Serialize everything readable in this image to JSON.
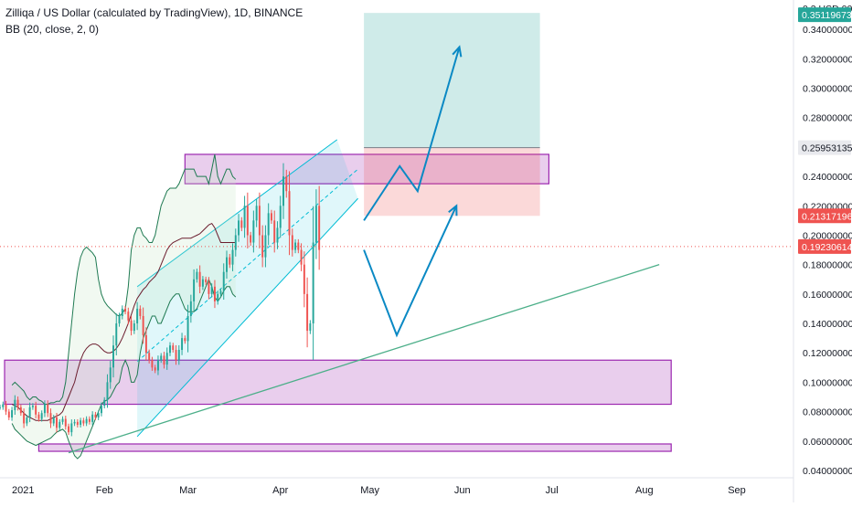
{
  "header": {
    "symbol_line": "Zilliqa / US Dollar (calculated by TradingView), 1D, BINANCE",
    "indicator_line": "BB (20, close, 2, 0)"
  },
  "colors": {
    "candle_up": "#26a69a",
    "candle_down": "#ef5350",
    "bb_band": "#1f7a52",
    "bb_basis": "#6b1d2e",
    "bb_fill": "#c8e6c9",
    "channel": "#00bcd4",
    "zone_fill": "#e1bee7",
    "zone_border": "#9c27b0",
    "trendline": "#4caf89",
    "arrow": "#0a89c4",
    "target_fill": "#26a69a",
    "stop_fill": "#ef5350",
    "current_price_line": "#ef5350"
  },
  "chart_data": {
    "type": "candlestick",
    "instrument": "Zilliqa / US Dollar",
    "interval": "1D",
    "exchange": "BINANCE",
    "indicator": "BB (20, close, 2, 0)",
    "y_axis": {
      "unit": "USD",
      "ylim": [
        0.035,
        0.36
      ],
      "tick_values": [
        0.04,
        0.06,
        0.08,
        0.1,
        0.12,
        0.14,
        0.16,
        0.18,
        0.2,
        0.22,
        0.24,
        0.28,
        0.3,
        0.32,
        0.34
      ],
      "tick_labels": [
        "0.04000000",
        "0.06000000",
        "0.08000000",
        "0.10000000",
        "0.12000000",
        "0.14000000",
        "0.16000000",
        "0.18000000",
        "0.20000000",
        "0.22000000",
        "0.24000000",
        "0.28000000",
        "0.30000000",
        "0.32000000",
        "0.34000000"
      ],
      "top_label": "0.3 USD 000",
      "price_tags": [
        {
          "value": 0.35,
          "label": "0.35119673",
          "style": "teal"
        },
        {
          "value": 0.25953135,
          "label": "0.25953135",
          "style": "gray"
        },
        {
          "value": 0.21317196,
          "label": "0.21317196",
          "style": "red"
        },
        {
          "value": 0.19230614,
          "label": "0.19230614",
          "style": "red"
        }
      ]
    },
    "x_axis": {
      "range": [
        "2020-12-28",
        "2021-09-20"
      ],
      "tick_labels": [
        {
          "date": "2021-01-01",
          "label": "2021"
        },
        {
          "date": "2021-02-01",
          "label": "Feb"
        },
        {
          "date": "2021-03-01",
          "label": "Mar"
        },
        {
          "date": "2021-04-01",
          "label": "Apr"
        },
        {
          "date": "2021-05-01",
          "label": "May"
        },
        {
          "date": "2021-06-01",
          "label": "Jun"
        },
        {
          "date": "2021-07-01",
          "label": "Jul"
        },
        {
          "date": "2021-08-01",
          "label": "Aug"
        },
        {
          "date": "2021-09-01",
          "label": "Sep"
        }
      ]
    },
    "price_path": {
      "start_date": "2020-12-28",
      "closes": [
        0.083,
        0.085,
        0.08,
        0.076,
        0.081,
        0.088,
        0.083,
        0.079,
        0.072,
        0.076,
        0.083,
        0.084,
        0.078,
        0.075,
        0.079,
        0.085,
        0.079,
        0.072,
        0.076,
        0.069,
        0.073,
        0.075,
        0.07,
        0.066,
        0.072,
        0.073,
        0.071,
        0.074,
        0.072,
        0.075,
        0.073,
        0.078,
        0.076,
        0.079,
        0.084,
        0.088,
        0.1,
        0.11,
        0.125,
        0.14,
        0.145,
        0.15,
        0.148,
        0.142,
        0.135,
        0.14,
        0.15,
        0.145,
        0.132,
        0.12,
        0.115,
        0.11,
        0.108,
        0.115,
        0.118,
        0.112,
        0.12,
        0.125,
        0.122,
        0.115,
        0.122,
        0.13,
        0.128,
        0.145,
        0.155,
        0.17,
        0.175,
        0.165,
        0.17,
        0.168,
        0.16,
        0.165,
        0.155,
        0.16,
        0.162,
        0.175,
        0.185,
        0.18,
        0.19,
        0.2,
        0.21,
        0.205,
        0.22,
        0.2,
        0.195,
        0.21,
        0.22,
        0.2,
        0.185,
        0.2,
        0.215,
        0.21,
        0.195,
        0.205,
        0.22,
        0.24,
        0.23,
        0.2,
        0.19,
        0.195,
        0.19,
        0.18,
        0.16,
        0.135,
        0.14,
        0.195,
        0.22,
        0.19
      ],
      "ohlc_note": "approximate daily closes read from the candles; highs/lows shown as wicks"
    },
    "bollinger_bands": {
      "start_date": "2021-01-01",
      "upper": [
        0.098,
        0.1,
        0.098,
        0.096,
        0.094,
        0.09,
        0.088,
        0.09,
        0.09,
        0.088,
        0.087,
        0.085,
        0.085,
        0.086,
        0.086,
        0.087,
        0.087,
        0.09,
        0.1,
        0.12,
        0.14,
        0.16,
        0.175,
        0.185,
        0.19,
        0.192,
        0.19,
        0.188,
        0.185,
        0.17,
        0.16,
        0.155,
        0.152,
        0.15,
        0.148,
        0.146,
        0.145,
        0.147,
        0.15,
        0.165,
        0.19,
        0.2,
        0.205,
        0.205,
        0.2,
        0.198,
        0.195,
        0.195,
        0.2,
        0.21,
        0.22,
        0.225,
        0.23,
        0.232,
        0.232,
        0.232,
        0.235,
        0.24,
        0.245,
        0.245,
        0.245,
        0.245,
        0.24,
        0.24,
        0.24,
        0.24,
        0.235,
        0.245,
        0.255,
        0.24,
        0.235,
        0.24,
        0.245,
        0.245,
        0.24,
        0.238
      ],
      "basis": [
        0.085,
        0.084,
        0.083,
        0.081,
        0.079,
        0.077,
        0.076,
        0.075,
        0.074,
        0.074,
        0.074,
        0.074,
        0.074,
        0.075,
        0.076,
        0.077,
        0.078,
        0.08,
        0.085,
        0.09,
        0.095,
        0.1,
        0.108,
        0.115,
        0.12,
        0.123,
        0.125,
        0.126,
        0.126,
        0.125,
        0.123,
        0.121,
        0.12,
        0.12,
        0.121,
        0.123,
        0.126,
        0.13,
        0.135,
        0.14,
        0.146,
        0.152,
        0.157,
        0.16,
        0.163,
        0.165,
        0.168,
        0.17,
        0.172,
        0.175,
        0.18,
        0.185,
        0.19,
        0.193,
        0.195,
        0.196,
        0.197,
        0.198,
        0.198,
        0.198,
        0.198,
        0.199,
        0.2,
        0.201,
        0.203,
        0.205,
        0.207,
        0.208,
        0.205,
        0.2,
        0.195,
        0.195,
        0.195,
        0.195,
        0.195,
        0.195
      ],
      "lower": [
        0.072,
        0.068,
        0.066,
        0.064,
        0.062,
        0.06,
        0.059,
        0.058,
        0.057,
        0.058,
        0.059,
        0.06,
        0.061,
        0.062,
        0.064,
        0.066,
        0.067,
        0.068,
        0.066,
        0.06,
        0.055,
        0.05,
        0.048,
        0.05,
        0.055,
        0.06,
        0.065,
        0.07,
        0.075,
        0.08,
        0.085,
        0.087,
        0.088,
        0.09,
        0.094,
        0.098,
        0.1,
        0.11,
        0.115,
        0.11,
        0.1,
        0.1,
        0.105,
        0.12,
        0.13,
        0.135,
        0.14,
        0.145,
        0.145,
        0.14,
        0.14,
        0.145,
        0.15,
        0.155,
        0.158,
        0.16,
        0.16,
        0.155,
        0.15,
        0.148,
        0.148,
        0.148,
        0.15,
        0.155,
        0.16,
        0.165,
        0.17,
        0.165,
        0.158,
        0.155,
        0.158,
        0.162,
        0.165,
        0.165,
        0.16,
        0.158
      ]
    },
    "drawings": {
      "resistance_zones": [
        {
          "from": "2021-02-28",
          "to": "2021-06-30",
          "low": 0.235,
          "high": 0.255
        },
        {
          "from": "2020-12-28",
          "to": "2021-08-10",
          "low": 0.085,
          "high": 0.115
        },
        {
          "from": "2021-01-10",
          "to": "2021-08-10",
          "low": 0.053,
          "high": 0.058
        }
      ],
      "ascending_channel": {
        "lower": [
          [
            "2021-02-12",
            0.063
          ],
          [
            "2021-04-27",
            0.225
          ]
        ],
        "upper": [
          [
            "2021-02-12",
            0.165
          ],
          [
            "2021-04-20",
            0.265
          ]
        ]
      },
      "trendline": [
        [
          "2021-01-20",
          0.052
        ],
        [
          "2021-08-06",
          0.18
        ]
      ],
      "long_position": {
        "from": "2021-04-29",
        "to": "2021-06-27",
        "entry": 0.25953135,
        "target": 0.35119673,
        "stop": 0.21317196
      },
      "projection_arrows": [
        [
          [
            "2021-04-29",
            0.21
          ],
          [
            "2021-05-11",
            0.247
          ],
          [
            "2021-05-17",
            0.23
          ],
          [
            "2021-05-31",
            0.328
          ]
        ],
        [
          [
            "2021-04-29",
            0.19
          ],
          [
            "2021-05-10",
            0.132
          ],
          [
            "2021-05-30",
            0.22
          ]
        ]
      ],
      "current_price": 0.19230614
    }
  }
}
